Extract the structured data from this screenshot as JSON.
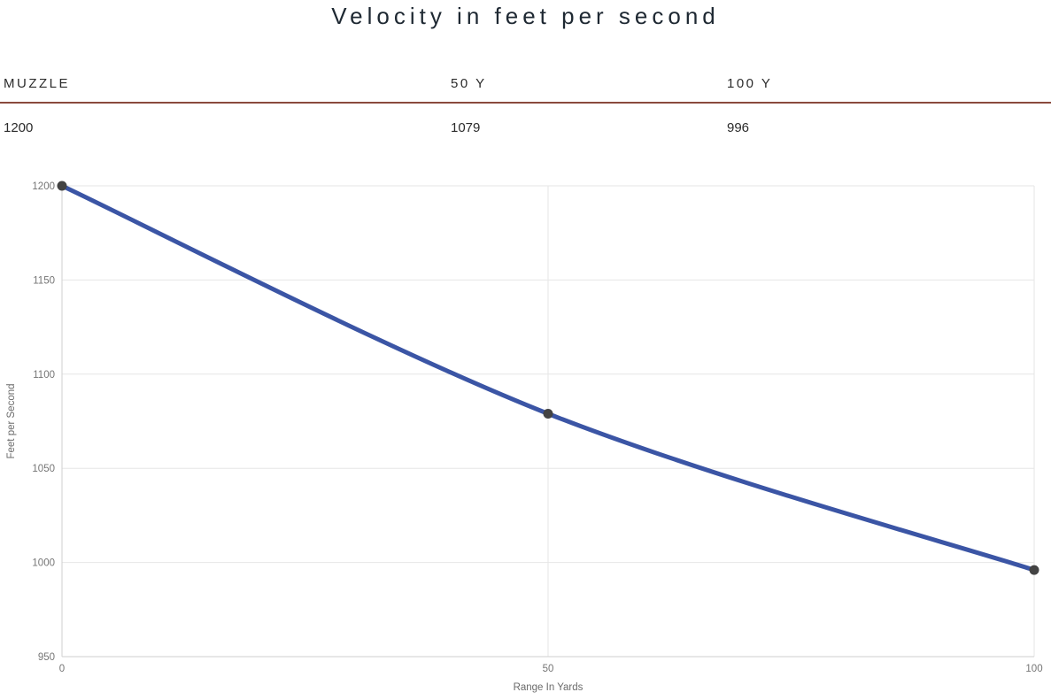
{
  "title": "Velocity in feet per second",
  "table": {
    "columns": [
      {
        "header": "MUZZLE",
        "value": "1200"
      },
      {
        "header": "50 Y",
        "value": "1079"
      },
      {
        "header": "100 Y",
        "value": "996"
      }
    ],
    "divider_color": "#8a4a3d"
  },
  "chart_data": {
    "type": "line",
    "x": [
      0,
      50,
      100
    ],
    "series": [
      {
        "name": "Velocity",
        "values": [
          1200,
          1079,
          996
        ]
      }
    ],
    "title": "",
    "xlabel": "Range In Yards",
    "ylabel": "Feet per Second",
    "xlim": [
      0,
      100
    ],
    "ylim": [
      950,
      1200
    ],
    "xticks": [
      0,
      50,
      100
    ],
    "yticks": [
      950,
      1000,
      1050,
      1100,
      1150,
      1200
    ],
    "grid": true,
    "legend": "none",
    "line_color": "#3b55a5",
    "marker_color": "#434343",
    "gridline_color": "#e6e6e6",
    "axis_line_color": "#cfcfcf",
    "tick_label_color": "#757575",
    "axis_title_color": "#6b6b6b"
  }
}
